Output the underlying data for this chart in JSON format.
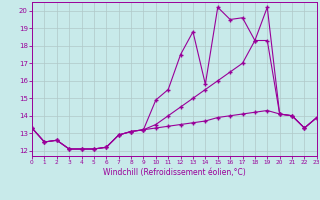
{
  "xlabel": "Windchill (Refroidissement éolien,°C)",
  "background_color": "#c8eaea",
  "grid_color": "#b0c8c8",
  "line_color": "#990099",
  "x": [
    0,
    1,
    2,
    3,
    4,
    5,
    6,
    7,
    8,
    9,
    10,
    11,
    12,
    13,
    14,
    15,
    16,
    17,
    18,
    19,
    20,
    21,
    22,
    23
  ],
  "line_top": [
    13.3,
    12.5,
    12.6,
    12.1,
    12.1,
    12.1,
    12.2,
    12.9,
    13.1,
    13.2,
    14.9,
    15.5,
    17.5,
    18.8,
    15.8,
    20.2,
    19.5,
    19.6,
    18.3,
    20.2,
    14.1,
    14.0,
    13.3,
    13.9
  ],
  "line_mid": [
    13.3,
    12.5,
    12.6,
    12.1,
    12.1,
    12.1,
    12.2,
    12.9,
    13.1,
    13.2,
    13.5,
    14.0,
    14.5,
    15.0,
    15.5,
    16.0,
    16.5,
    17.0,
    18.3,
    18.3,
    14.1,
    14.0,
    13.3,
    13.9
  ],
  "line_bot": [
    13.3,
    12.5,
    12.6,
    12.1,
    12.1,
    12.1,
    12.2,
    12.9,
    13.1,
    13.2,
    13.3,
    13.4,
    13.5,
    13.6,
    13.7,
    13.9,
    14.0,
    14.1,
    14.2,
    14.3,
    14.1,
    14.0,
    13.3,
    13.9
  ],
  "ylim": [
    11.7,
    20.5
  ],
  "yticks": [
    12,
    13,
    14,
    15,
    16,
    17,
    18,
    19,
    20
  ],
  "xlim": [
    0,
    23
  ],
  "xticks": [
    0,
    1,
    2,
    3,
    4,
    5,
    6,
    7,
    8,
    9,
    10,
    11,
    12,
    13,
    14,
    15,
    16,
    17,
    18,
    19,
    20,
    21,
    22,
    23
  ]
}
